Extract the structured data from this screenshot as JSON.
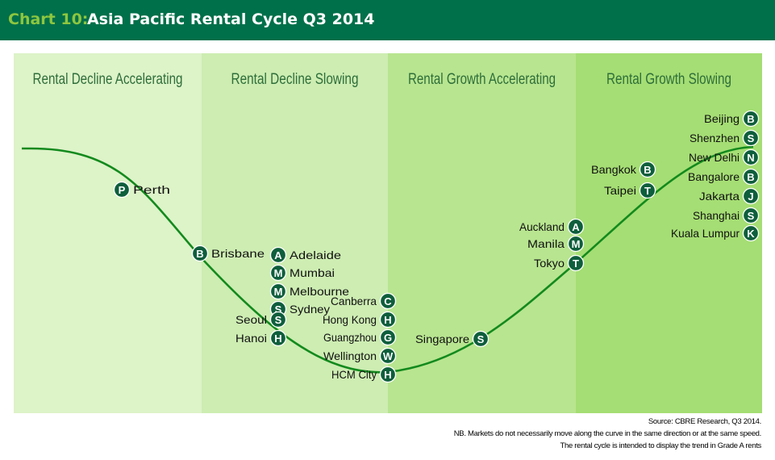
{
  "header": {
    "prefix": "Chart 10:",
    "title": "Asia Pacific Rental Cycle Q3 2014"
  },
  "colors": {
    "header_bg": "#00704a",
    "prefix": "#8dc63f",
    "curve": "#138a1d",
    "marker": "#0e5e3c",
    "phase_bg": [
      "#ddf3c8",
      "#cdedb2",
      "#b8e590",
      "#a5de74"
    ],
    "phase_text": "#2e6e3a"
  },
  "chart_data": {
    "type": "diagram-cycle",
    "phases": [
      "Rental Decline Accelerating",
      "Rental Decline Slowing",
      "Rental Growth Accelerating",
      "Rental Growth Slowing"
    ],
    "markets": [
      {
        "name": "Perth",
        "badge": "P",
        "phase": 1
      },
      {
        "name": "Brisbane",
        "badge": "B",
        "phase": 1
      },
      {
        "name": "Adelaide",
        "badge": "A",
        "phase": 2
      },
      {
        "name": "Mumbai",
        "badge": "M",
        "phase": 2
      },
      {
        "name": "Melbourne",
        "badge": "M",
        "phase": 2
      },
      {
        "name": "Sydney",
        "badge": "S",
        "phase": 2
      },
      {
        "name": "Seoul",
        "badge": "S",
        "phase": 2
      },
      {
        "name": "Hanoi",
        "badge": "H",
        "phase": 2
      },
      {
        "name": "Canberra",
        "badge": "C",
        "phase": 2
      },
      {
        "name": "Hong Kong",
        "badge": "H",
        "phase": 2
      },
      {
        "name": "Guangzhou",
        "badge": "G",
        "phase": 2
      },
      {
        "name": "Wellington",
        "badge": "W",
        "phase": 2
      },
      {
        "name": "HCM City",
        "badge": "H",
        "phase": 2
      },
      {
        "name": "Singapore",
        "badge": "S",
        "phase": 3
      },
      {
        "name": "Auckland",
        "badge": "A",
        "phase": 3
      },
      {
        "name": "Manila",
        "badge": "M",
        "phase": 3
      },
      {
        "name": "Tokyo",
        "badge": "T",
        "phase": 3
      },
      {
        "name": "Bangkok",
        "badge": "B",
        "phase": 4
      },
      {
        "name": "Taipei",
        "badge": "T",
        "phase": 4
      },
      {
        "name": "Beijing",
        "badge": "B",
        "phase": 4
      },
      {
        "name": "Shenzhen",
        "badge": "S",
        "phase": 4
      },
      {
        "name": "New Delhi",
        "badge": "N",
        "phase": 4
      },
      {
        "name": "Bangalore",
        "badge": "B",
        "phase": 4
      },
      {
        "name": "Jakarta",
        "badge": "J",
        "phase": 4
      },
      {
        "name": "Shanghai",
        "badge": "S",
        "phase": 4
      },
      {
        "name": "Kuala Lumpur",
        "badge": "K",
        "phase": 4
      }
    ]
  },
  "notes": {
    "source": "Source: CBRE Research, Q3 2014.",
    "nb": "NB. Markets do not necessarily move along the curve in the same direction or at the same speed.",
    "cycle": "The rental cycle is intended to display the trend in Grade A rents"
  }
}
